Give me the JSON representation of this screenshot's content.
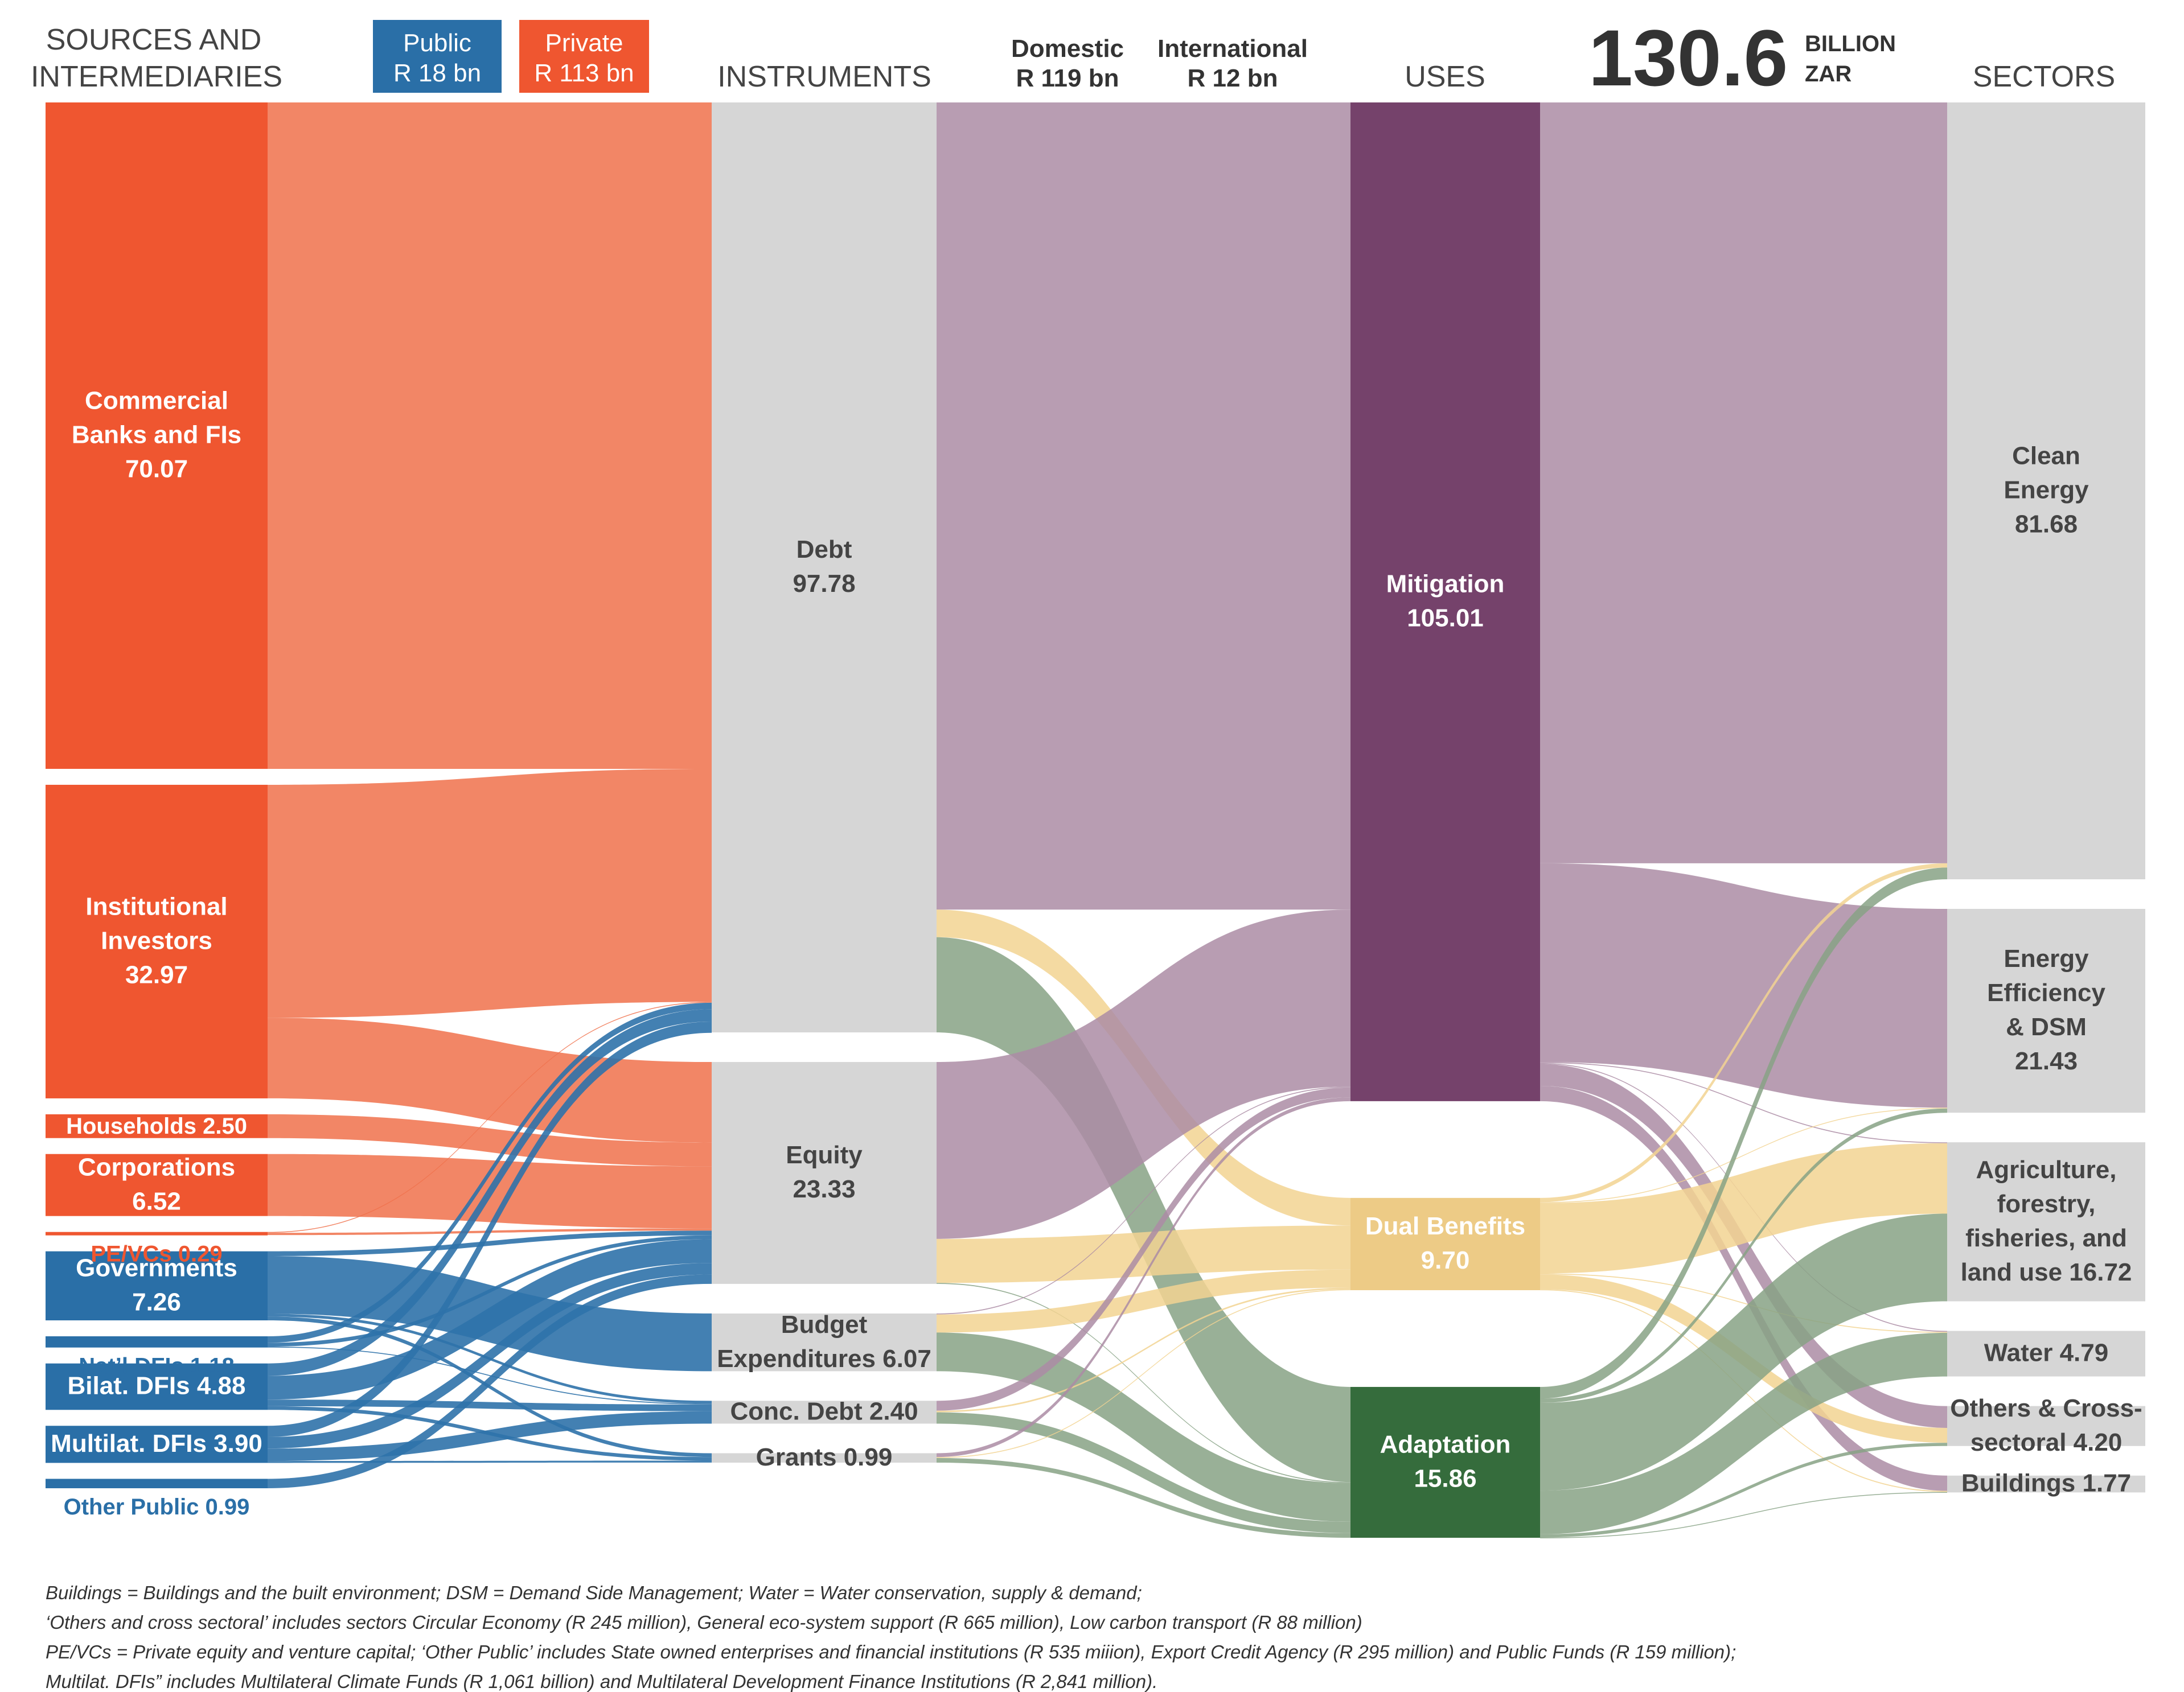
{
  "headers": {
    "sources_line1": "SOURCES AND",
    "sources_line2": "INTERMEDIARIES",
    "public_line1": "Public",
    "public_line2": "R 18 bn",
    "private_line1": "Private",
    "private_line2": "R 113 bn",
    "instruments": "INSTRUMENTS",
    "domestic_line1": "Domestic",
    "domestic_line2": "R 119 bn",
    "international_line1": "International",
    "international_line2": "R 12 bn",
    "uses": "USES",
    "total_value": "130.6",
    "total_unit_line1": "BILLION",
    "total_unit_line2": "ZAR",
    "sectors": "SECTORS"
  },
  "colors": {
    "private": "#ef5630",
    "private_flow": "#f0714b",
    "public": "#2a6fa7",
    "public_flow": "#2f72aa",
    "instrument": "#d6d6d6",
    "mitigation": "#75426b",
    "mitigation_flow": "#ac8ca5",
    "dual": "#f2d492",
    "dual_node": "#edcb86",
    "adaptation": "#356c3c",
    "adaptation_flow": "#87a285",
    "sector": "#d6d6d6",
    "dark_text": "#444444",
    "public_text": "#2a6fa7",
    "private_text": "#ef5630"
  },
  "chart_data": {
    "type": "sankey",
    "unit": "billion ZAR",
    "total": 130.6,
    "nodes": [
      {
        "id": "cbfi",
        "stage": "sources",
        "group": "private",
        "label_lines": [
          "Commercial",
          "Banks and FIs",
          "70.07"
        ],
        "value": 70.07
      },
      {
        "id": "inst",
        "stage": "sources",
        "group": "private",
        "label_lines": [
          "Institutional",
          "Investors",
          "32.97"
        ],
        "value": 32.97
      },
      {
        "id": "hh",
        "stage": "sources",
        "group": "private",
        "label_lines": [
          "Households 2.50"
        ],
        "value": 2.5
      },
      {
        "id": "corp",
        "stage": "sources",
        "group": "private",
        "label_lines": [
          "Corporations",
          "6.52"
        ],
        "value": 6.52
      },
      {
        "id": "pevc",
        "stage": "sources",
        "group": "private",
        "label_lines": [
          "PE/VCs 0.29"
        ],
        "value": 0.29
      },
      {
        "id": "gov",
        "stage": "sources",
        "group": "public",
        "label_lines": [
          "Governments",
          "7.26"
        ],
        "value": 7.26
      },
      {
        "id": "ndfi",
        "stage": "sources",
        "group": "public",
        "label_lines": [
          "Nat’l DFIs 1.18"
        ],
        "value": 1.18
      },
      {
        "id": "bdfi",
        "stage": "sources",
        "group": "public",
        "label_lines": [
          "Bilat. DFIs 4.88"
        ],
        "value": 4.88
      },
      {
        "id": "mdfi",
        "stage": "sources",
        "group": "public",
        "label_lines": [
          "Multilat. DFIs 3.90"
        ],
        "value": 3.9
      },
      {
        "id": "opub",
        "stage": "sources",
        "group": "public",
        "label_lines": [
          "Other Public 0.99"
        ],
        "value": 0.99
      },
      {
        "id": "debt",
        "stage": "instruments",
        "group": "instrument",
        "label_lines": [
          "Debt",
          "97.78"
        ],
        "value": 97.78
      },
      {
        "id": "equity",
        "stage": "instruments",
        "group": "instrument",
        "label_lines": [
          "Equity",
          "23.33"
        ],
        "value": 23.33
      },
      {
        "id": "budget",
        "stage": "instruments",
        "group": "instrument",
        "label_lines": [
          "Budget",
          "Expenditures 6.07"
        ],
        "value": 6.07
      },
      {
        "id": "conc",
        "stage": "instruments",
        "group": "instrument",
        "label_lines": [
          "Conc. Debt 2.40"
        ],
        "value": 2.4
      },
      {
        "id": "grants",
        "stage": "instruments",
        "group": "instrument",
        "label_lines": [
          "Grants 0.99"
        ],
        "value": 0.99
      },
      {
        "id": "mit",
        "stage": "uses",
        "group": "mitigation",
        "label_lines": [
          "Mitigation",
          "105.01"
        ],
        "value": 105.01
      },
      {
        "id": "dual",
        "stage": "uses",
        "group": "dual",
        "label_lines": [
          "Dual Benefits",
          "9.70"
        ],
        "value": 9.7
      },
      {
        "id": "adapt",
        "stage": "uses",
        "group": "adaptation",
        "label_lines": [
          "Adaptation",
          "15.86"
        ],
        "value": 15.86
      },
      {
        "id": "clean",
        "stage": "sectors",
        "group": "sector",
        "label_lines": [
          "Clean",
          "Energy",
          "81.68"
        ],
        "value": 81.68
      },
      {
        "id": "ee",
        "stage": "sectors",
        "group": "sector",
        "label_lines": [
          "Energy",
          "Efficiency",
          "& DSM",
          "21.43"
        ],
        "value": 21.43
      },
      {
        "id": "afolu",
        "stage": "sectors",
        "group": "sector",
        "label_lines": [
          "Agriculture,",
          "forestry,",
          "fisheries, and",
          "land use 16.72"
        ],
        "value": 16.72
      },
      {
        "id": "water",
        "stage": "sectors",
        "group": "sector",
        "label_lines": [
          "Water 4.79"
        ],
        "value": 4.79
      },
      {
        "id": "other",
        "stage": "sectors",
        "group": "sector",
        "label_lines": [
          "Others & Cross-",
          "sectoral 4.20"
        ],
        "value": 4.2
      },
      {
        "id": "build",
        "stage": "sectors",
        "group": "sector",
        "label_lines": [
          "Buildings 1.77"
        ],
        "value": 1.77
      }
    ],
    "links": [
      {
        "from": "cbfi",
        "to": "debt",
        "value": 70.07
      },
      {
        "from": "inst",
        "to": "debt",
        "value": 24.5
      },
      {
        "from": "inst",
        "to": "equity",
        "value": 8.47
      },
      {
        "from": "hh",
        "to": "equity",
        "value": 2.5
      },
      {
        "from": "corp",
        "to": "equity",
        "value": 6.52
      },
      {
        "from": "pevc",
        "to": "debt",
        "value": 0.05
      },
      {
        "from": "pevc",
        "to": "equity",
        "value": 0.24
      },
      {
        "from": "gov",
        "to": "equity",
        "value": 0.5
      },
      {
        "from": "gov",
        "to": "budget",
        "value": 6.07
      },
      {
        "from": "gov",
        "to": "conc",
        "value": 0.29
      },
      {
        "from": "gov",
        "to": "grants",
        "value": 0.4
      },
      {
        "from": "ndfi",
        "to": "debt",
        "value": 0.68
      },
      {
        "from": "ndfi",
        "to": "equity",
        "value": 0.4
      },
      {
        "from": "ndfi",
        "to": "conc",
        "value": 0.1
      },
      {
        "from": "bdfi",
        "to": "debt",
        "value": 1.3
      },
      {
        "from": "bdfi",
        "to": "equity",
        "value": 2.5
      },
      {
        "from": "bdfi",
        "to": "conc",
        "value": 0.7
      },
      {
        "from": "bdfi",
        "to": "grants",
        "value": 0.38
      },
      {
        "from": "mdfi",
        "to": "debt",
        "value": 1.18
      },
      {
        "from": "mdfi",
        "to": "equity",
        "value": 1.21
      },
      {
        "from": "mdfi",
        "to": "conc",
        "value": 1.31
      },
      {
        "from": "mdfi",
        "to": "grants",
        "value": 0.2
      },
      {
        "from": "opub",
        "to": "equity",
        "value": 0.99
      },
      {
        "from": "debt",
        "to": "mit",
        "value": 84.87
      },
      {
        "from": "debt",
        "to": "dual",
        "value": 2.9
      },
      {
        "from": "debt",
        "to": "adapt",
        "value": 10.01
      },
      {
        "from": "equity",
        "to": "mit",
        "value": 18.6
      },
      {
        "from": "equity",
        "to": "dual",
        "value": 4.63
      },
      {
        "from": "equity",
        "to": "adapt",
        "value": 0.1
      },
      {
        "from": "budget",
        "to": "mit",
        "value": 0.1
      },
      {
        "from": "budget",
        "to": "dual",
        "value": 1.9
      },
      {
        "from": "budget",
        "to": "adapt",
        "value": 4.07
      },
      {
        "from": "conc",
        "to": "mit",
        "value": 1.04
      },
      {
        "from": "conc",
        "to": "dual",
        "value": 0.17
      },
      {
        "from": "conc",
        "to": "adapt",
        "value": 1.19
      },
      {
        "from": "grants",
        "to": "mit",
        "value": 0.4
      },
      {
        "from": "grants",
        "to": "dual",
        "value": 0.1
      },
      {
        "from": "grants",
        "to": "adapt",
        "value": 0.49
      },
      {
        "from": "mit",
        "to": "clean",
        "value": 80.0
      },
      {
        "from": "mit",
        "to": "ee",
        "value": 20.9
      },
      {
        "from": "mit",
        "to": "afolu",
        "value": 0.1
      },
      {
        "from": "mit",
        "to": "water",
        "value": 0.1
      },
      {
        "from": "mit",
        "to": "other",
        "value": 2.3
      },
      {
        "from": "mit",
        "to": "build",
        "value": 1.61
      },
      {
        "from": "dual",
        "to": "clean",
        "value": 0.45
      },
      {
        "from": "dual",
        "to": "ee",
        "value": 0.08
      },
      {
        "from": "dual",
        "to": "afolu",
        "value": 7.4
      },
      {
        "from": "dual",
        "to": "water",
        "value": 0.1
      },
      {
        "from": "dual",
        "to": "other",
        "value": 1.56
      },
      {
        "from": "dual",
        "to": "build",
        "value": 0.11
      },
      {
        "from": "adapt",
        "to": "clean",
        "value": 1.23
      },
      {
        "from": "adapt",
        "to": "ee",
        "value": 0.45
      },
      {
        "from": "adapt",
        "to": "afolu",
        "value": 9.22
      },
      {
        "from": "adapt",
        "to": "water",
        "value": 4.59
      },
      {
        "from": "adapt",
        "to": "other",
        "value": 0.34
      },
      {
        "from": "adapt",
        "to": "build",
        "value": 0.03
      }
    ]
  },
  "footnotes": [
    "Buildings = Buildings and the built environment; DSM = Demand Side Management; Water = Water conservation, supply & demand;",
    "‘Others and cross sectoral’ includes sectors Circular Economy (R 245 million), General eco-system support (R 665 million), Low carbon transport (R 88 million)",
    "PE/VCs = Private equity and venture capital; ‘Other Public’ includes State owned enterprises and financial institutions (R 535 miiion), Export Credit Agency (R 295 million) and Public Funds (R 159 million);",
    "Multilat. DFIs” includes Multilateral Climate Funds (R 1,061 billion) and Multilateral Development Finance Institutions (R  2,841 million)."
  ]
}
